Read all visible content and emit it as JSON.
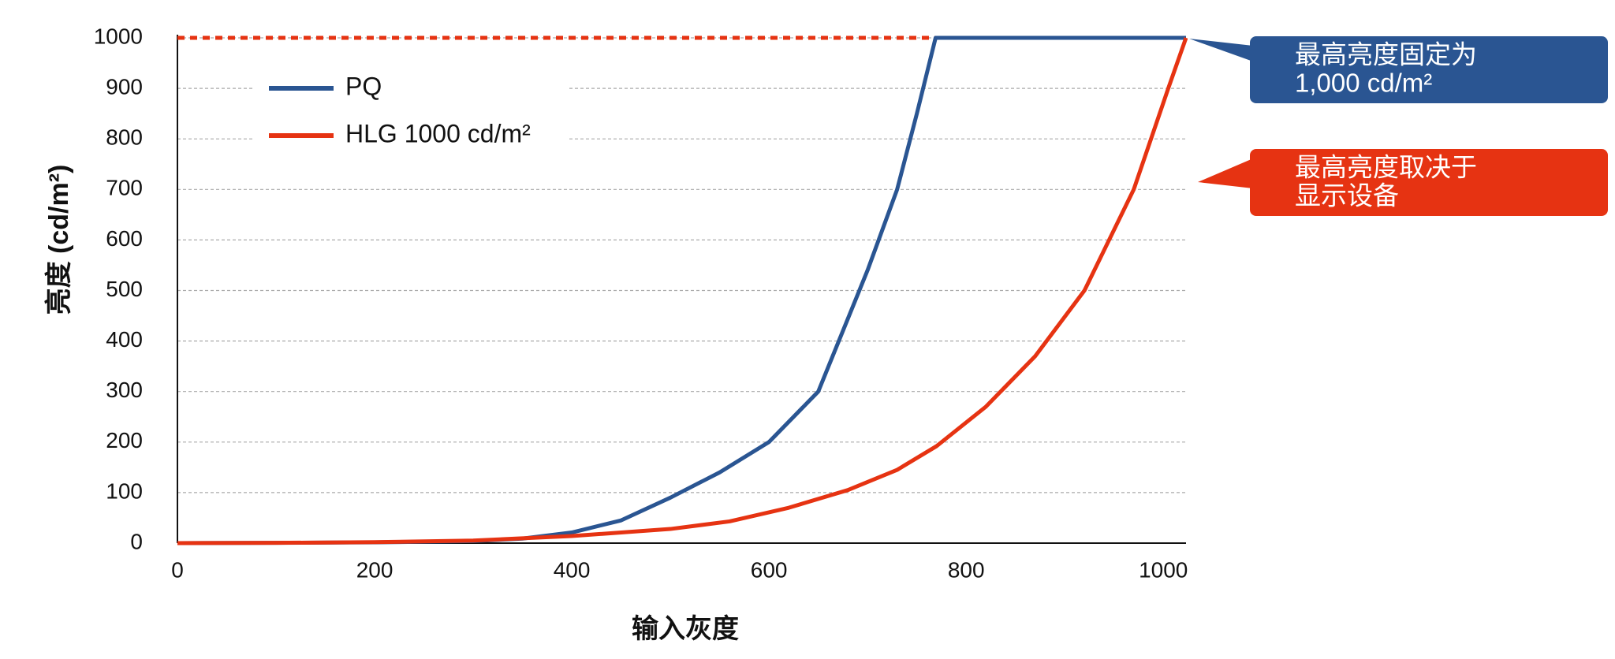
{
  "chart_data": {
    "type": "line",
    "xlabel": "输入灰度",
    "ylabel": "亮度 (cd/m²)",
    "xlim": [
      0,
      1023
    ],
    "ylim": [
      0,
      1000
    ],
    "xticks": [
      0,
      200,
      400,
      600,
      800,
      1000
    ],
    "yticks": [
      0,
      100,
      200,
      300,
      400,
      500,
      600,
      700,
      800,
      900,
      1000
    ],
    "grid": true,
    "legend": "upper left",
    "series": [
      {
        "name": "PQ",
        "color": "#2a5592",
        "x": [
          0,
          100,
          200,
          300,
          350,
          400,
          450,
          500,
          550,
          600,
          650,
          700,
          730,
          750,
          769,
          1023
        ],
        "values": [
          0,
          0.5,
          1.5,
          4,
          9,
          21,
          45,
          90,
          140,
          200,
          300,
          540,
          700,
          850,
          1000,
          1000
        ]
      },
      {
        "name": "HLG 1000 cd/m²",
        "color": "#e63312",
        "x": [
          0,
          100,
          200,
          300,
          400,
          500,
          560,
          620,
          680,
          730,
          770,
          820,
          870,
          920,
          970,
          1005,
          1023
        ],
        "values": [
          0,
          0.5,
          2,
          5,
          14,
          28,
          43,
          70,
          105,
          145,
          192,
          270,
          370,
          500,
          700,
          900,
          1000
        ]
      }
    ],
    "reference_line": {
      "y": 1000,
      "x": [
        0,
        769
      ],
      "color": "#e63312"
    },
    "annotations": [
      {
        "lines": [
          "最高亮度固定为",
          "1,000 cd/m²"
        ],
        "color": "#2a5592"
      },
      {
        "lines": [
          "最高亮度取决于",
          "显示设备"
        ],
        "color": "#e63312"
      }
    ]
  }
}
